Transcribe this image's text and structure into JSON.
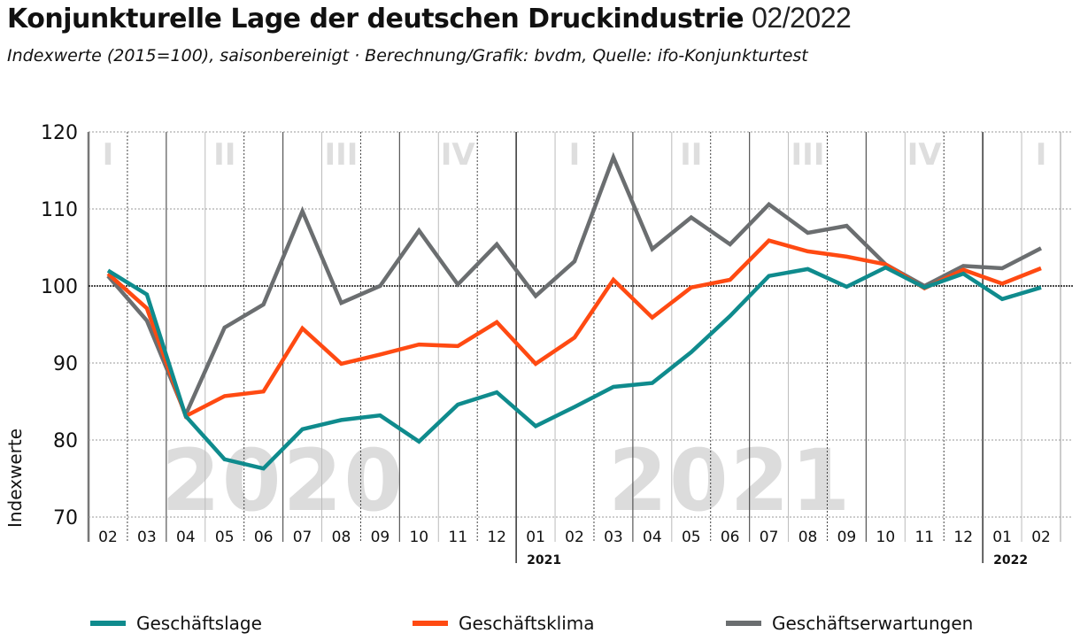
{
  "header": {
    "title_bold": "Konjunkturelle Lage der deutschen Druckindustrie",
    "title_light": "02/2022",
    "subtitle": "Indexwerte (2015=100), saisonbereinigt · Berechnung/Grafik: bvdm, Quelle: ifo-Konjunkturtest"
  },
  "chart_data": {
    "type": "line",
    "title": "Konjunkturelle Lage der deutschen Druckindustrie 02/2022",
    "subtitle": "Indexwerte (2015=100), saisonbereinigt · Berechnung/Grafik: bvdm, Quelle: ifo-Konjunkturtest",
    "xlabel": "",
    "ylabel": "Indexwerte",
    "ylim": [
      70,
      120
    ],
    "yticks": [
      70,
      80,
      90,
      100,
      110,
      120
    ],
    "grid": true,
    "reference_line": 100,
    "x": [
      "02",
      "03",
      "04",
      "05",
      "06",
      "07",
      "08",
      "09",
      "10",
      "11",
      "12",
      "01",
      "02",
      "03",
      "04",
      "05",
      "06",
      "07",
      "08",
      "09",
      "10",
      "11",
      "12",
      "01",
      "02"
    ],
    "year_markers": [
      {
        "label": "2021",
        "at_index": 11
      },
      {
        "label": "2022",
        "at_index": 23
      }
    ],
    "year_watermarks": [
      {
        "label": "2020",
        "center_index": 4.5
      },
      {
        "label": "2021",
        "center_index": 16
      }
    ],
    "quarter_labels": [
      {
        "label": "I",
        "center_index": 0
      },
      {
        "label": "II",
        "center_index": 3
      },
      {
        "label": "III",
        "center_index": 6
      },
      {
        "label": "IV",
        "center_index": 9
      },
      {
        "label": "I",
        "center_index": 12
      },
      {
        "label": "II",
        "center_index": 15
      },
      {
        "label": "III",
        "center_index": 18
      },
      {
        "label": "IV",
        "center_index": 21
      },
      {
        "label": "I",
        "center_index": 24
      }
    ],
    "series": [
      {
        "name": "Geschäftslage",
        "color": "#0f8b8d",
        "values": [
          102.0,
          98.9,
          83.1,
          77.5,
          76.3,
          81.4,
          82.6,
          83.2,
          79.8,
          84.6,
          86.2,
          81.8,
          84.3,
          86.9,
          87.4,
          91.4,
          96.1,
          101.3,
          102.2,
          99.9,
          102.4,
          99.8,
          101.6,
          98.3,
          99.8
        ]
      },
      {
        "name": "Geschäftsklima",
        "color": "#ff4a12",
        "values": [
          101.6,
          97.1,
          83.1,
          85.7,
          86.3,
          94.5,
          89.9,
          91.1,
          92.4,
          92.2,
          95.3,
          89.9,
          93.3,
          100.8,
          95.9,
          99.8,
          100.8,
          105.9,
          104.5,
          103.8,
          102.8,
          99.7,
          102.1,
          100.3,
          102.3
        ]
      },
      {
        "name": "Geschäftserwartungen",
        "color": "#6b6e70",
        "values": [
          101.3,
          95.5,
          83.3,
          94.6,
          97.6,
          109.7,
          97.8,
          100.0,
          107.2,
          100.2,
          105.4,
          98.7,
          103.2,
          116.7,
          104.8,
          108.9,
          105.4,
          110.6,
          106.9,
          107.8,
          102.8,
          100.0,
          102.6,
          102.3,
          104.9
        ]
      }
    ],
    "legend": [
      "Geschäftslage",
      "Geschäftsklima",
      "Geschäftserwartungen"
    ],
    "legend_position": "bottom"
  }
}
